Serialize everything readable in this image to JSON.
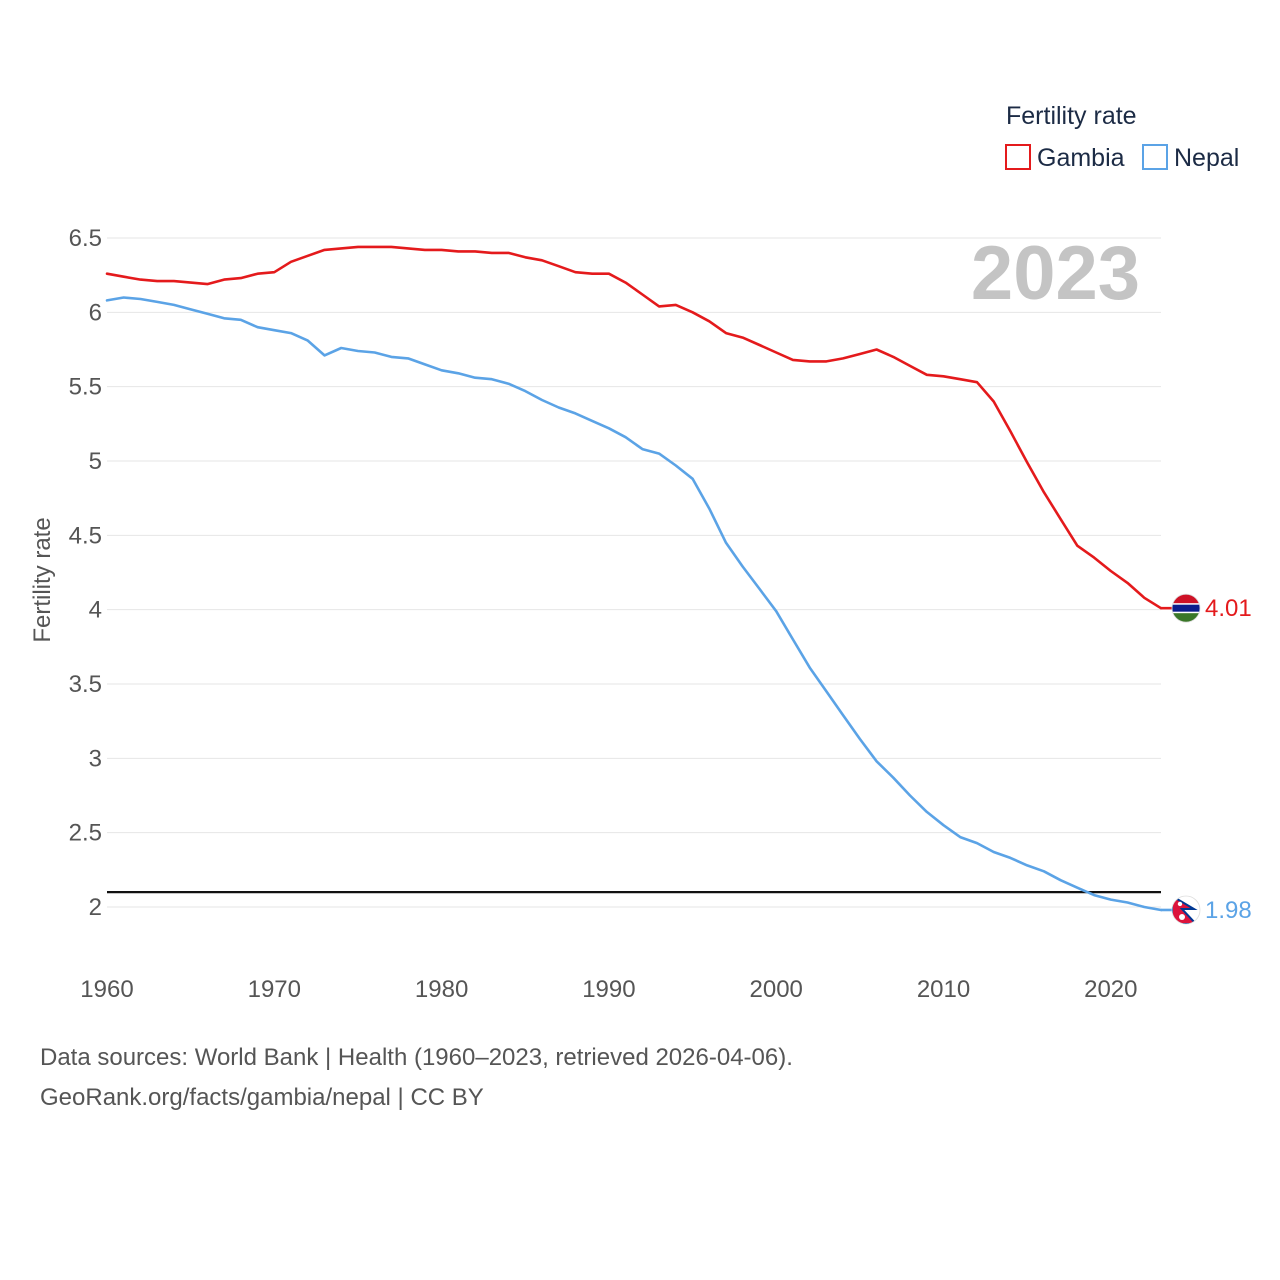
{
  "chart_data": {
    "type": "line",
    "title": "",
    "xlabel": "",
    "ylabel": "Fertility rate",
    "xlim": [
      1960,
      2023
    ],
    "ylim": [
      1.5,
      6.8
    ],
    "xticks": [
      1960,
      1970,
      1980,
      1990,
      2000,
      2010,
      2020
    ],
    "yticks": [
      2,
      2.5,
      3,
      3.5,
      4,
      4.5,
      5,
      5.5,
      6,
      6.5
    ],
    "ytick_labels": [
      "2",
      "2.5",
      "3",
      "3.5",
      "4",
      "4.5",
      "5",
      "5.5",
      "6",
      "6.5"
    ],
    "year_label": "2023",
    "legend": {
      "title": "Fertility rate",
      "position": "top-right"
    },
    "reference_line": {
      "y": 2.1,
      "color": "#111111"
    },
    "x": [
      1960,
      1961,
      1962,
      1963,
      1964,
      1965,
      1966,
      1967,
      1968,
      1969,
      1970,
      1971,
      1972,
      1973,
      1974,
      1975,
      1976,
      1977,
      1978,
      1979,
      1980,
      1981,
      1982,
      1983,
      1984,
      1985,
      1986,
      1987,
      1988,
      1989,
      1990,
      1991,
      1992,
      1993,
      1994,
      1995,
      1996,
      1997,
      1998,
      1999,
      2000,
      2001,
      2002,
      2003,
      2004,
      2005,
      2006,
      2007,
      2008,
      2009,
      2010,
      2011,
      2012,
      2013,
      2014,
      2015,
      2016,
      2017,
      2018,
      2019,
      2020,
      2021,
      2022,
      2023
    ],
    "series": [
      {
        "name": "Gambia",
        "color": "#e41a1c",
        "end_label": "4.01",
        "flag": "gambia-flag",
        "values": [
          6.26,
          6.24,
          6.22,
          6.21,
          6.21,
          6.2,
          6.19,
          6.22,
          6.23,
          6.26,
          6.27,
          6.34,
          6.38,
          6.42,
          6.43,
          6.44,
          6.44,
          6.44,
          6.43,
          6.42,
          6.42,
          6.41,
          6.41,
          6.4,
          6.4,
          6.37,
          6.35,
          6.31,
          6.27,
          6.26,
          6.26,
          6.2,
          6.12,
          6.04,
          6.05,
          6.0,
          5.94,
          5.86,
          5.83,
          5.78,
          5.73,
          5.68,
          5.67,
          5.67,
          5.69,
          5.72,
          5.75,
          5.7,
          5.64,
          5.58,
          5.57,
          5.55,
          5.53,
          5.4,
          5.2,
          4.99,
          4.79,
          4.61,
          4.43,
          4.35,
          4.26,
          4.18,
          4.08,
          4.01
        ]
      },
      {
        "name": "Nepal",
        "color": "#5ba3e6",
        "end_label": "1.98",
        "flag": "nepal-flag",
        "values": [
          6.08,
          6.1,
          6.09,
          6.07,
          6.05,
          6.02,
          5.99,
          5.96,
          5.95,
          5.9,
          5.88,
          5.86,
          5.81,
          5.71,
          5.76,
          5.74,
          5.73,
          5.7,
          5.69,
          5.65,
          5.61,
          5.59,
          5.56,
          5.55,
          5.52,
          5.47,
          5.41,
          5.36,
          5.32,
          5.27,
          5.22,
          5.16,
          5.08,
          5.05,
          4.97,
          4.88,
          4.68,
          4.45,
          4.29,
          4.14,
          3.99,
          3.8,
          3.61,
          3.45,
          3.29,
          3.13,
          2.98,
          2.87,
          2.75,
          2.64,
          2.55,
          2.47,
          2.43,
          2.37,
          2.33,
          2.28,
          2.24,
          2.18,
          2.13,
          2.08,
          2.05,
          2.03,
          2.0,
          1.98
        ]
      }
    ]
  },
  "footer": {
    "sources": "Data sources: World Bank | Health (1960–2023, retrieved 2026-04-06).",
    "credit": "GeoRank.org/facts/gambia/nepal | CC BY"
  }
}
